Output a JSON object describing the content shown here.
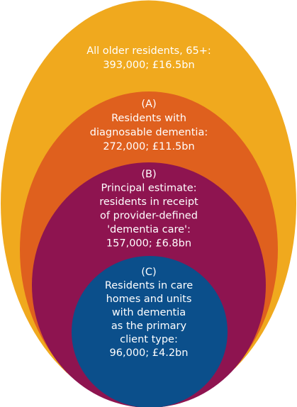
{
  "groups": [
    {
      "lines": [
        "All older residents, 65+:",
        "393,000; £16.5bn"
      ]
    },
    {
      "lines": [
        "(A)",
        "Residents with",
        "diagnosable dementia:",
        "272,000; £11.5bn"
      ]
    },
    {
      "lines": [
        "(B)",
        "Principal estimate:",
        "residents in receipt",
        "of provider-defined",
        "'dementia care':",
        "157,000; £6.8bn"
      ]
    },
    {
      "lines": [
        "(C)",
        "Residents in care",
        "homes and units",
        "with dementia",
        "as the primary",
        "client type:",
        "96,000; £4.2bn"
      ]
    }
  ]
}
